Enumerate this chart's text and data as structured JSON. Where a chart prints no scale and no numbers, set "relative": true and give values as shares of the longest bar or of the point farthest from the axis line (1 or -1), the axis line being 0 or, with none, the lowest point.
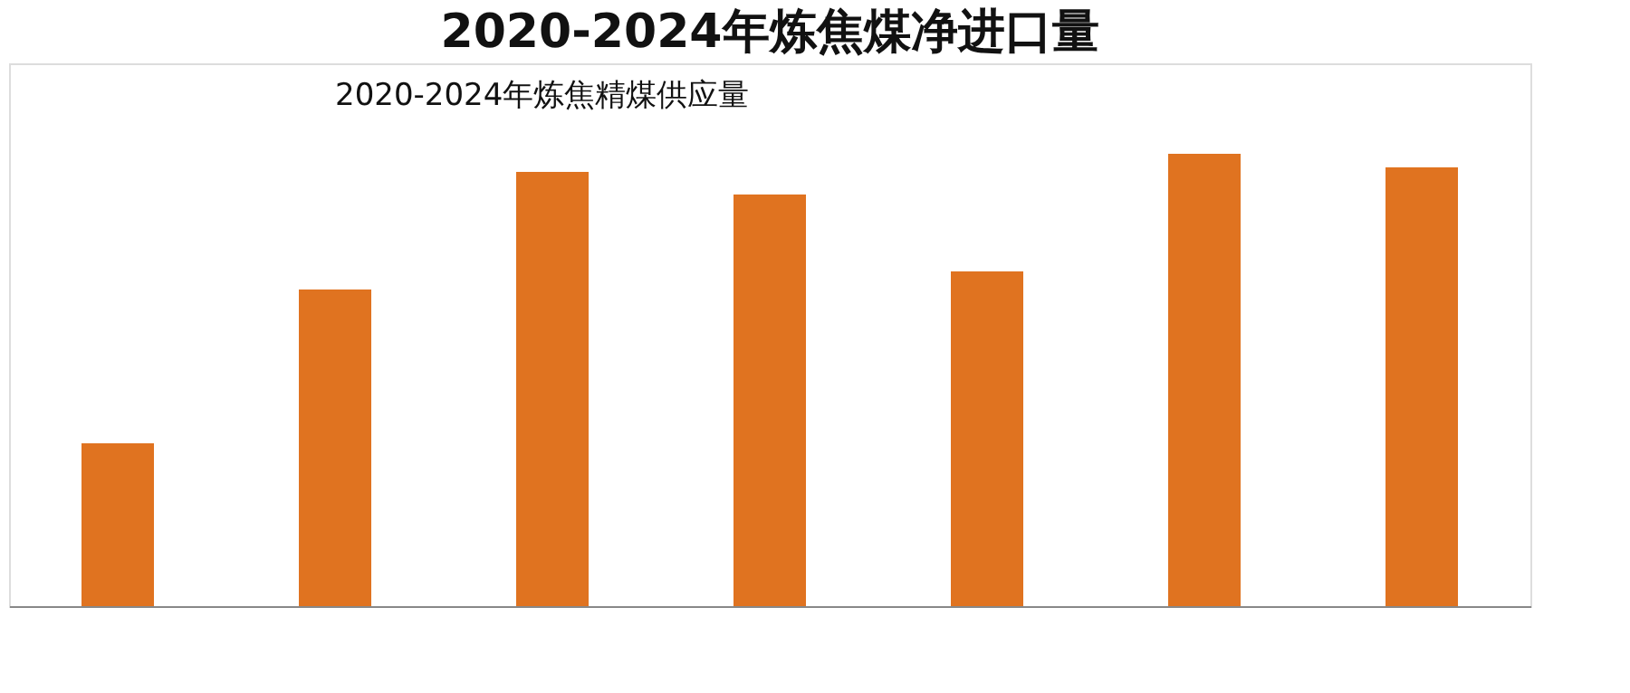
{
  "chart_data": {
    "type": "bar",
    "title": "2020-2024年炼焦煤净进口量",
    "annotations": [
      "2020-2024年炼焦精煤供应量"
    ],
    "relative": true,
    "categories": [
      null,
      null,
      null,
      null,
      null,
      null,
      null
    ],
    "values": [
      0.36,
      0.7,
      0.96,
      0.91,
      0.74,
      1.0,
      0.97
    ],
    "color": "#e07320"
  }
}
